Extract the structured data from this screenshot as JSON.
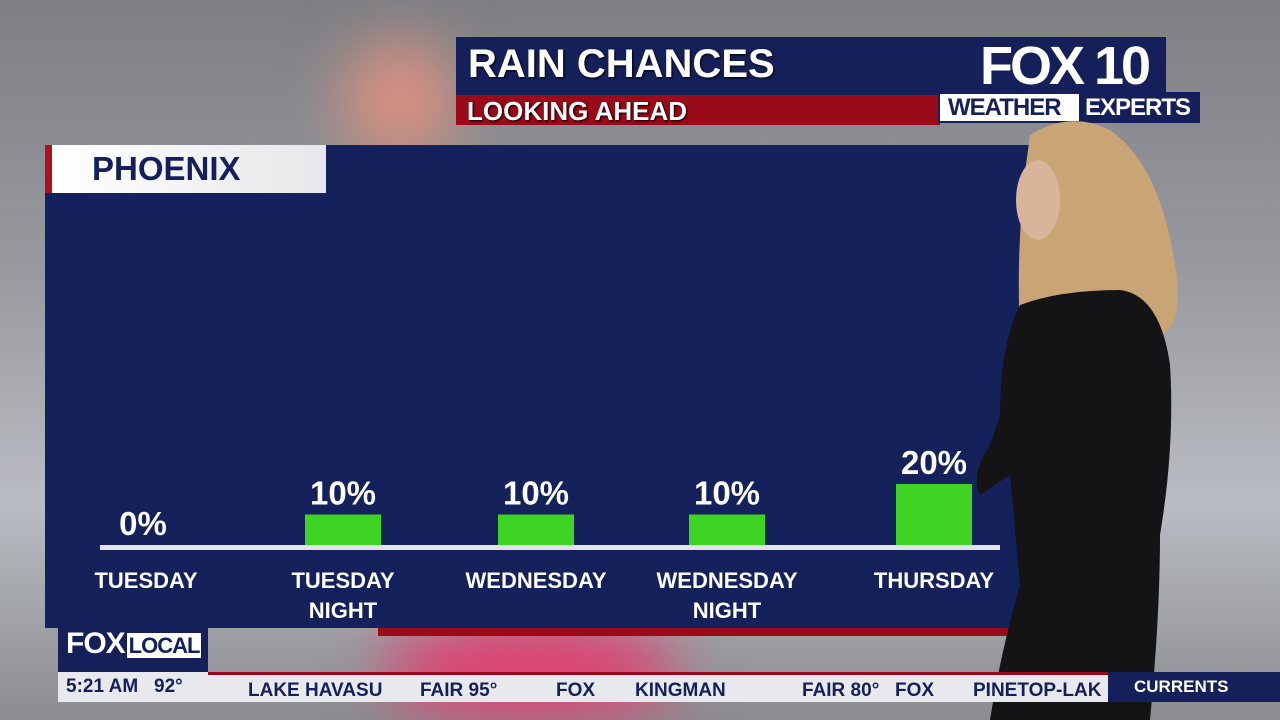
{
  "header": {
    "title": "RAIN CHANCES",
    "subtitle": "LOOKING AHEAD",
    "logo": "FOX 10",
    "logo_tag_left": "WEATHER",
    "logo_tag_right": "EXPERTS"
  },
  "location": "PHOENIX",
  "colors": {
    "navy": "#14215a",
    "red": "#9a0a18",
    "bar": "#3fd424"
  },
  "chart_data": {
    "type": "bar",
    "categories": [
      "TUESDAY",
      "TUESDAY NIGHT",
      "WEDNESDAY",
      "WEDNESDAY NIGHT",
      "THURSDAY"
    ],
    "category_lines": [
      [
        "TUESDAY"
      ],
      [
        "TUESDAY",
        "NIGHT"
      ],
      [
        "WEDNESDAY"
      ],
      [
        "WEDNESDAY",
        "NIGHT"
      ],
      [
        "THURSDAY"
      ]
    ],
    "values": [
      0,
      10,
      10,
      10,
      20
    ],
    "labels": [
      "0%",
      "10%",
      "10%",
      "10%",
      "20%"
    ],
    "unit": "%",
    "ylim": [
      0,
      100
    ],
    "grid": false
  },
  "footer": {
    "brand": "FOX",
    "brand_local": "LOCAL",
    "time": "5:21 AM",
    "temp": "92°",
    "currents": "CURRENTS",
    "ticker": [
      {
        "text": "LAKE  HAVASU"
      },
      {
        "text": "FAIR  95°"
      },
      {
        "text": "FOX"
      },
      {
        "text": "KINGMAN"
      },
      {
        "text": "FAIR  80°"
      },
      {
        "text": "FOX"
      },
      {
        "text": "PINETOP-LAK"
      }
    ]
  }
}
